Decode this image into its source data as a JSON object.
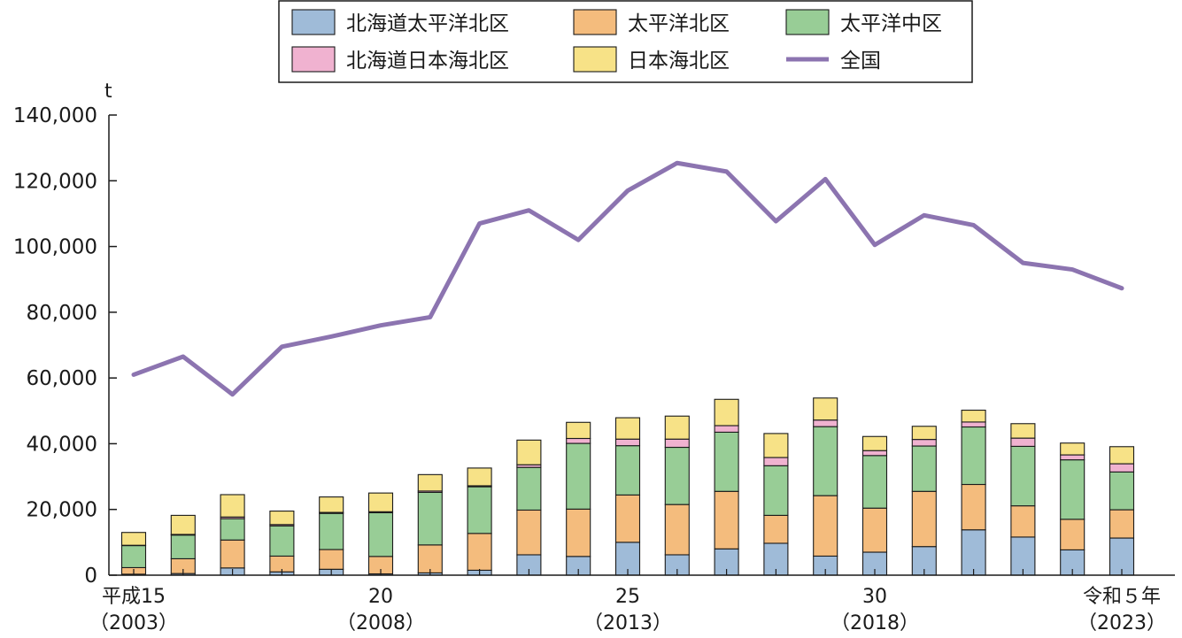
{
  "chart_data": {
    "type": "bar",
    "stacked": true,
    "unit": "t",
    "ylim": [
      0,
      140000
    ],
    "yticks": [
      "0",
      "20,000",
      "40,000",
      "60,000",
      "80,000",
      "100,000",
      "120,000",
      "140,000"
    ],
    "years": [
      2003,
      2004,
      2005,
      2006,
      2007,
      2008,
      2009,
      2010,
      2011,
      2012,
      2013,
      2014,
      2015,
      2016,
      2017,
      2018,
      2019,
      2020,
      2021,
      2022,
      2023
    ],
    "x_labels": [
      {
        "index": 0,
        "line1": "平成15",
        "line2": "（2003）"
      },
      {
        "index": 5,
        "line1": "20",
        "line2": "（2008）"
      },
      {
        "index": 10,
        "line1": "25",
        "line2": "（2013）"
      },
      {
        "index": 15,
        "line1": "30",
        "line2": "（2018）"
      },
      {
        "index": 20,
        "line1": "令和５年",
        "line2": "（2023）"
      }
    ],
    "series": [
      {
        "name": "北海道太平洋北区",
        "color": "#9fbbd8",
        "values": [
          300,
          500,
          2200,
          1000,
          1800,
          400,
          700,
          1500,
          6200,
          5700,
          10000,
          6200,
          8000,
          9700,
          5800,
          7000,
          8700,
          13800,
          11600,
          7700,
          11300
        ]
      },
      {
        "name": "太平洋北区",
        "color": "#f4bc7d",
        "values": [
          2000,
          4500,
          8500,
          4800,
          6000,
          5300,
          8500,
          11200,
          13600,
          14400,
          14400,
          15300,
          17500,
          8500,
          18400,
          13400,
          16800,
          13800,
          9500,
          9300,
          8600
        ]
      },
      {
        "name": "太平洋中区",
        "color": "#98cd96",
        "values": [
          6700,
          7200,
          6500,
          9200,
          11000,
          13300,
          16000,
          14200,
          13000,
          20000,
          15000,
          17400,
          18000,
          15100,
          21000,
          16000,
          13800,
          17500,
          18100,
          18100,
          11500
        ]
      },
      {
        "name": "北海道日本海北区",
        "color": "#f0b2d0",
        "values": [
          100,
          200,
          500,
          400,
          300,
          300,
          400,
          300,
          800,
          1500,
          2000,
          2500,
          2000,
          2500,
          2000,
          1500,
          2000,
          1500,
          2500,
          1500,
          2500
        ]
      },
      {
        "name": "日本海北区",
        "color": "#f7e287",
        "values": [
          3900,
          5800,
          6800,
          4100,
          4700,
          5700,
          5000,
          5400,
          7500,
          4900,
          6500,
          7000,
          8000,
          7300,
          6700,
          4300,
          4000,
          3600,
          4400,
          3600,
          5200
        ]
      }
    ],
    "line": {
      "name": "全国",
      "color": "#8c74b0",
      "values": [
        61000,
        66500,
        55000,
        69500,
        72600,
        76000,
        78500,
        107000,
        111000,
        102000,
        117000,
        125400,
        122800,
        107700,
        120500,
        100500,
        109500,
        106500,
        95000,
        93000,
        87300
      ]
    }
  }
}
